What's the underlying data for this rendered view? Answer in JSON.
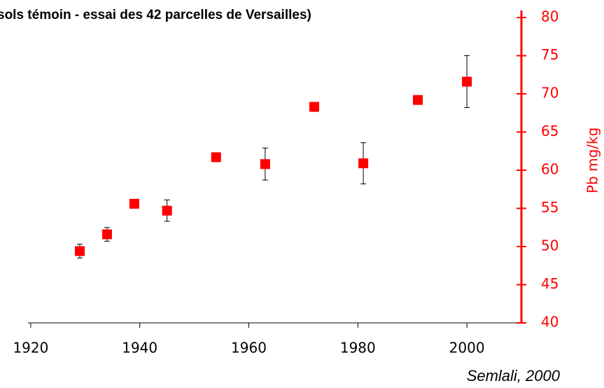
{
  "chart_data": {
    "type": "scatter",
    "title": "sols témoin - essai des 42 parcelles de Versailles)",
    "y_label": "Pb mg/kg",
    "annotation": "Semlali, 2000",
    "x": [
      1929,
      1934,
      1939,
      1945,
      1954,
      1963,
      1972,
      1981,
      1991,
      2000
    ],
    "values": [
      49.4,
      51.6,
      55.6,
      54.7,
      61.7,
      60.8,
      68.3,
      60.9,
      69.2,
      71.6
    ],
    "errors": [
      0.9,
      0.9,
      0.3,
      1.4,
      0.3,
      2.1,
      0.6,
      2.7,
      0.3,
      3.4
    ],
    "color": "#ff0000",
    "axis_color": "#ff0000",
    "xlim": [
      1919.5,
      2010
    ],
    "xticks": [
      1920,
      1940,
      1960,
      1980,
      2000
    ],
    "ylim": [
      40,
      80
    ],
    "yticks": [
      40,
      45,
      50,
      55,
      60,
      65,
      70,
      75,
      80
    ]
  }
}
